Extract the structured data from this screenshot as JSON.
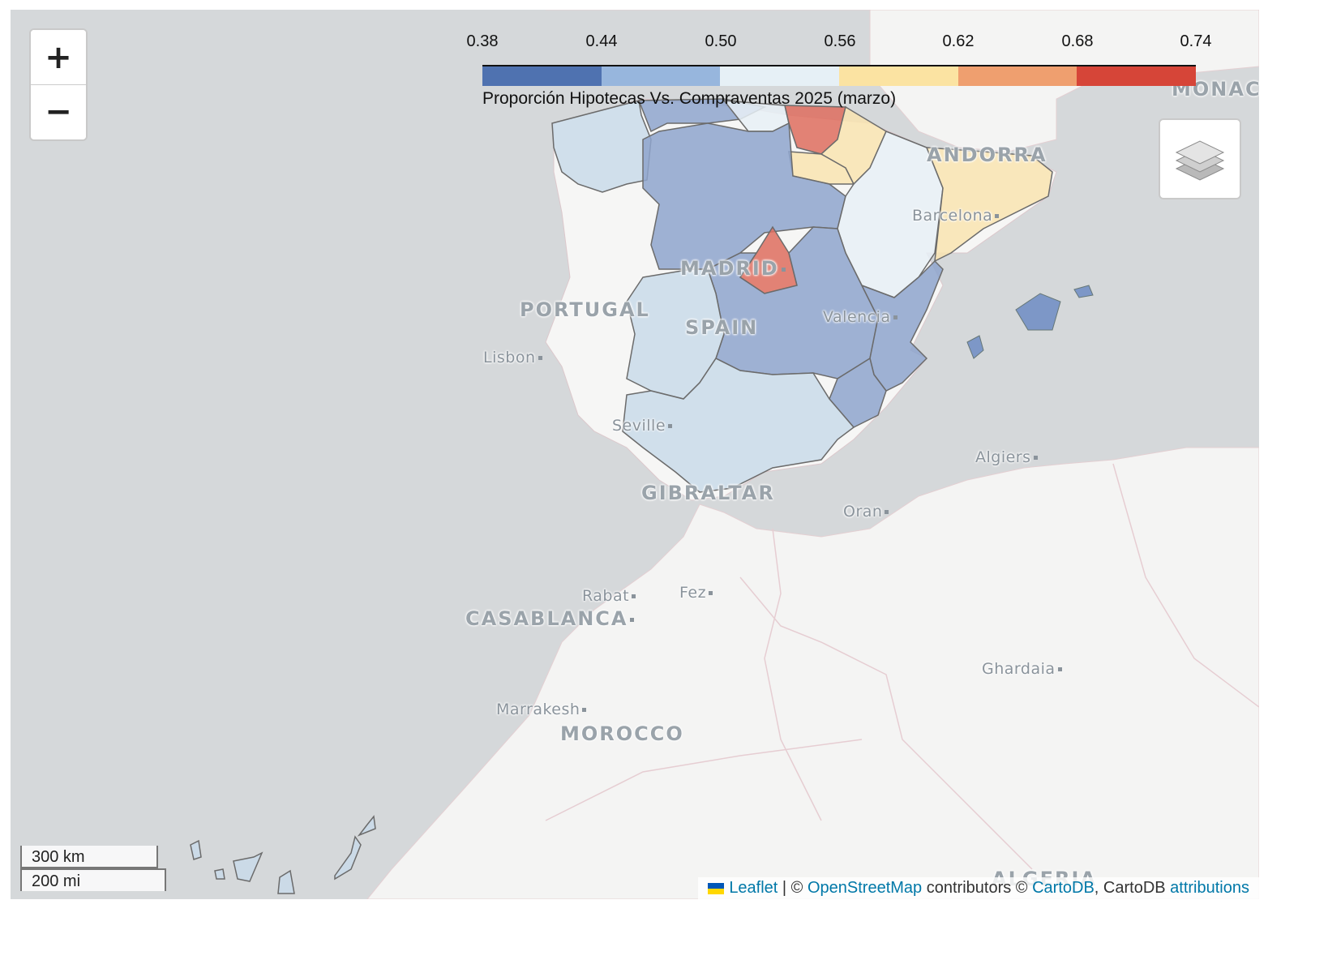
{
  "zoom_control": {
    "zoom_in": "+",
    "zoom_out": "−"
  },
  "layer_control": {
    "icon": "layers-icon"
  },
  "legend": {
    "ticks": [
      "0.38",
      "0.44",
      "0.50",
      "0.56",
      "0.62",
      "0.68",
      "0.74"
    ],
    "colors": [
      "#4f72b0",
      "#97b6dd",
      "#e6f0f6",
      "#fbe3a2",
      "#ef9f6f",
      "#d64538"
    ],
    "caption": "Proporción Hipotecas Vs. Compraventas 2025 (marzo)"
  },
  "places": {
    "monaco": "MONACO",
    "andorra": "ANDORRA",
    "barcelona": "Barcelona",
    "madrid": "MADRID",
    "portugal": "PORTUGAL",
    "spain": "SPAIN",
    "valencia": "Valencia",
    "lisbon": "Lisbon",
    "seville": "Seville",
    "algiers": "Algiers",
    "gibraltar": "GIBRALTAR",
    "oran": "Oran",
    "rabat": "Rabat",
    "fez": "Fez",
    "casablanca": "CASABLANCA",
    "ghardaia": "Ghardaia",
    "marrakesh": "Marrakesh",
    "morocco": "MOROCCO",
    "algeria": "ALGERIA"
  },
  "scale": {
    "km": "300 km",
    "mi": "200 mi"
  },
  "attribution": {
    "leaflet": "Leaflet",
    "sep1": " | © ",
    "osm": "OpenStreetMap",
    "contrib": " contributors © ",
    "cartodb": "CartoDB",
    "cartodb_plain": ", CartoDB ",
    "attributions": "attributions"
  },
  "flag_colors": [
    "#0057b7",
    "#ffd700"
  ]
}
